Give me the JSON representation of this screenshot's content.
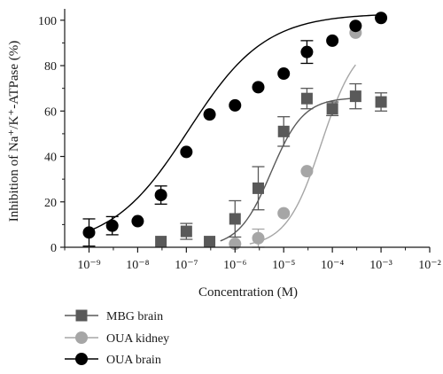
{
  "chart_data": {
    "type": "scatter",
    "title": "",
    "xlabel": "Concentration (M)",
    "ylabel": "Inhibition of Na⁺/K⁺-ATPase (%)",
    "x_scale": "log",
    "xlim": [
      3.16e-10,
      0.01
    ],
    "ylim": [
      0,
      105
    ],
    "x_ticks": [
      1e-09,
      1e-08,
      1e-07,
      1e-06,
      1e-05,
      0.0001,
      0.001,
      0.01
    ],
    "x_tick_labels": [
      "10⁻⁹",
      "10⁻⁸",
      "10⁻⁷",
      "10⁻⁶",
      "10⁻⁵",
      "10⁻⁴",
      "10⁻³",
      "10⁻²"
    ],
    "y_ticks": [
      0,
      20,
      40,
      60,
      80,
      100
    ],
    "y_tick_labels": [
      "0",
      "20",
      "40",
      "60",
      "80",
      "100"
    ],
    "legend_position": "bottom-left",
    "grid": false,
    "series": [
      {
        "name": "MBG brain",
        "marker": "square",
        "color": "#595959",
        "x": [
          3e-08,
          1e-07,
          3e-07,
          1e-06,
          3e-06,
          1e-05,
          3e-05,
          0.0001,
          0.0003,
          0.001
        ],
        "y": [
          2.5,
          7,
          2.5,
          12.5,
          26,
          51,
          65.5,
          61,
          66.5,
          64
        ],
        "err": [
          0,
          3.5,
          0,
          8,
          9.5,
          6.5,
          4.5,
          3,
          5.5,
          4
        ]
      },
      {
        "name": "OUA kidney",
        "marker": "circle",
        "color": "#a6a6a6",
        "x": [
          1e-06,
          3e-06,
          1e-05,
          3e-05,
          0.0003
        ],
        "y": [
          1.5,
          4,
          15,
          33.5,
          94.5
        ],
        "err": [
          0,
          4,
          0,
          0,
          0
        ]
      },
      {
        "name": "OUA brain",
        "marker": "circle",
        "color": "#000000",
        "x": [
          1e-09,
          3e-09,
          1e-08,
          3e-08,
          1e-07,
          3e-07,
          1e-06,
          3e-06,
          1e-05,
          3e-05,
          0.0001,
          0.0003,
          0.001
        ],
        "y": [
          6.5,
          9.5,
          11.5,
          23,
          42,
          58.5,
          62.5,
          70.5,
          76.5,
          86,
          91,
          97.5,
          101
        ],
        "err": [
          6,
          4,
          0,
          4,
          0,
          0,
          0,
          0,
          0,
          5,
          0,
          0,
          0
        ]
      }
    ]
  }
}
